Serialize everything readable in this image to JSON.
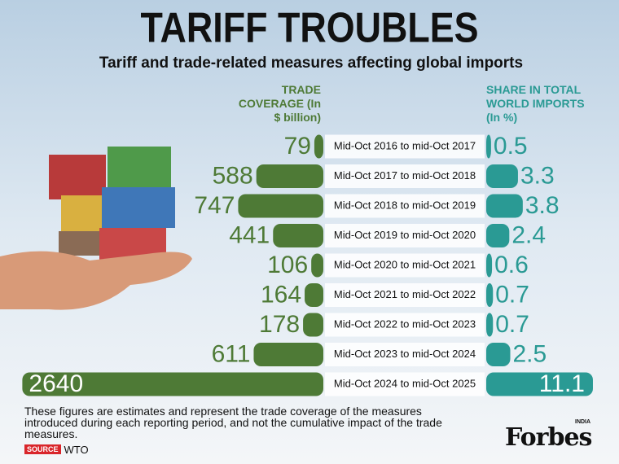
{
  "chart_data": {
    "type": "butterfly",
    "title": "TARIFF TROUBLES",
    "subtitle": "Tariff and trade-related measures affecting global imports",
    "categories": [
      "Mid-Oct 2016 to mid-Oct 2017",
      "Mid-Oct 2017 to mid-Oct 2018",
      "Mid-Oct 2018 to mid-Oct 2019",
      "Mid-Oct 2019 to mid-Oct 2020",
      "Mid-Oct 2020 to mid-Oct 2021",
      "Mid-Oct 2021 to mid-Oct 2022",
      "Mid-Oct 2022 to mid-Oct 2023",
      "Mid-Oct 2023 to mid-Oct 2024",
      "Mid-Oct 2024 to mid-Oct 2025"
    ],
    "series": [
      {
        "name": "TRADE COVERAGE (In $ billion)",
        "color": "#4e7a36",
        "values": [
          79,
          588,
          747,
          441,
          106,
          164,
          178,
          611,
          2640
        ]
      },
      {
        "name": "SHARE IN TOTAL WORLD IMPORTS (In %)",
        "color": "#2a9a94",
        "values": [
          0.5,
          3.3,
          3.8,
          2.4,
          0.6,
          0.7,
          0.7,
          2.5,
          11.1
        ]
      }
    ],
    "note": "These figures are estimates and represent the trade coverage of the measures introduced during each reporting period, and not the cumulative impact of the trade measures.",
    "source_label": "SOURCE",
    "source": "WTO",
    "brand": "Forbes",
    "brand_sub": "INDIA"
  }
}
